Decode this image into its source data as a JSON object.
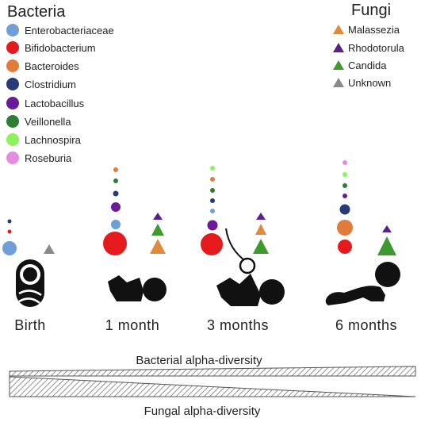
{
  "legend": {
    "bacteria_title": "Bacteria",
    "fungi_title": "Fungi",
    "bacteria": [
      {
        "label": "Enterobacteriaceae",
        "color": "#6f9ed8"
      },
      {
        "label": "Bifidobacterium",
        "color": "#e41a1c"
      },
      {
        "label": "Bacteroides",
        "color": "#e07b39"
      },
      {
        "label": "Clostridium",
        "color": "#273a7a"
      },
      {
        "label": "Lactobacillus",
        "color": "#6a1b9a"
      },
      {
        "label": "Veillonella",
        "color": "#2e7d32"
      },
      {
        "label": "Lachnospira",
        "color": "#8cf25a"
      },
      {
        "label": "Roseburia",
        "color": "#e58be0"
      }
    ],
    "fungi": [
      {
        "label": "Malassezia",
        "color": "#e08a3c"
      },
      {
        "label": "Rhodotorula",
        "color": "#5b1f8c"
      },
      {
        "label": "Candida",
        "color": "#3e9a2e"
      },
      {
        "label": "Unknown",
        "color": "#8a8a8a"
      }
    ]
  },
  "stages": [
    {
      "label": "Birth"
    },
    {
      "label": "1 month"
    },
    {
      "label": "3 months"
    },
    {
      "label": "6 months"
    }
  ],
  "bacterial_diversity_label": "Bacterial alpha-diversity",
  "fungal_diversity_label": "Fungal alpha-diversity"
}
